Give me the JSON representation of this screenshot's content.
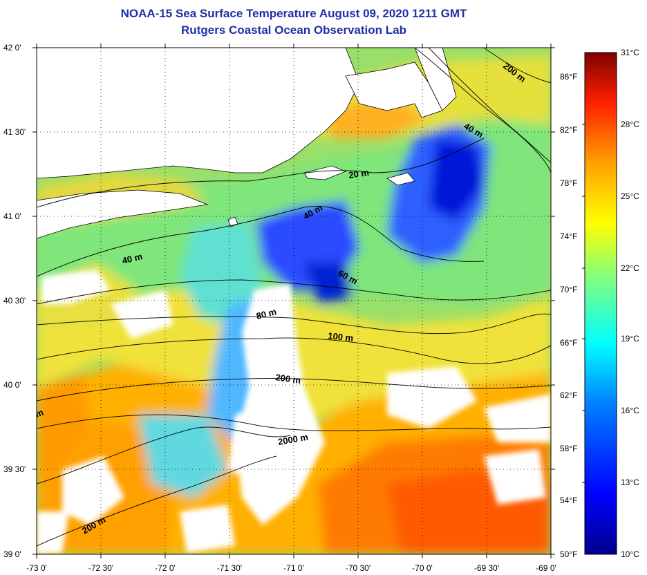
{
  "title_line1": "NOAA-15 Sea Surface Temperature August 09, 2020 1211 GMT",
  "title_line2": "Rutgers Coastal Ocean Observation Lab",
  "map": {
    "lat_range": [
      39.0,
      42.0
    ],
    "lon_range": [
      -73.0,
      -69.0
    ],
    "lat_ticks": [
      "42 0'",
      "41 30'",
      "41 0'",
      "40 30'",
      "40 0'",
      "39 30'",
      "39 0'"
    ],
    "lon_ticks": [
      "-73 0'",
      "-72 30'",
      "-72 0'",
      "-71 30'",
      "-71 0'",
      "-70 30'",
      "-70 0'",
      "-69 30'",
      "-69 0'"
    ],
    "gridlines": "dotted",
    "isobath_labels": [
      "200 m",
      "40 m",
      "20 m",
      "40 m",
      "40 m",
      "60 m",
      "80 m",
      "100 m",
      "200 m",
      "2000 m",
      "200 m",
      "m"
    ],
    "land_color": "#ffffff",
    "cloud_color": "#ffffff"
  },
  "colorbar": {
    "celsius_labels": [
      "31°C",
      "28°C",
      "25°C",
      "22°C",
      "19°C",
      "16°C",
      "13°C",
      "10°C"
    ],
    "fahrenheit_labels": [
      "86°F",
      "82°F",
      "78°F",
      "74°F",
      "70°F",
      "66°F",
      "62°F",
      "58°F",
      "54°F",
      "50°F"
    ],
    "range_c": [
      10,
      31
    ],
    "colormap": [
      "#00008f",
      "#0000ff",
      "#0080ff",
      "#00ffff",
      "#80ff80",
      "#ffff00",
      "#ff8000",
      "#ff0000",
      "#800000"
    ]
  }
}
